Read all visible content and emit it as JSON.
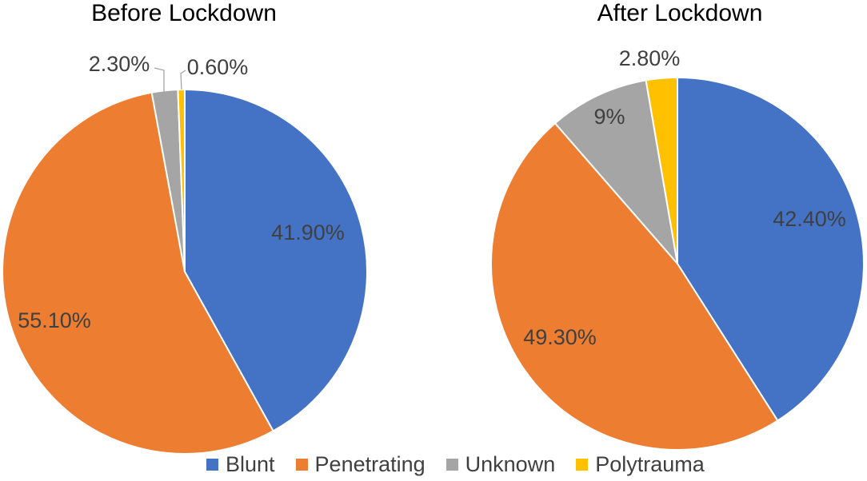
{
  "chart_data": [
    {
      "type": "pie",
      "title": "Before Lockdown",
      "categories": [
        "Blunt",
        "Penetrating",
        "Unknown",
        "Polytrauma"
      ],
      "values": [
        41.9,
        55.1,
        2.3,
        0.6
      ],
      "data_labels": [
        "41.90%",
        "55.10%",
        "2.30%",
        "0.60%"
      ]
    },
    {
      "type": "pie",
      "title": "After Lockdown",
      "categories": [
        "Blunt",
        "Penetrating",
        "Unknown",
        "Polytrauma"
      ],
      "values": [
        42.4,
        49.3,
        9,
        2.8
      ],
      "data_labels": [
        "42.40%",
        "49.30%",
        "9%",
        "2.80%"
      ]
    }
  ],
  "legend": {
    "position": "bottom",
    "items": [
      {
        "label": "Blunt",
        "color": "#4472C4"
      },
      {
        "label": "Penetrating",
        "color": "#ED7D31"
      },
      {
        "label": "Unknown",
        "color": "#A5A5A5"
      },
      {
        "label": "Polytrauma",
        "color": "#FFC000"
      }
    ]
  }
}
